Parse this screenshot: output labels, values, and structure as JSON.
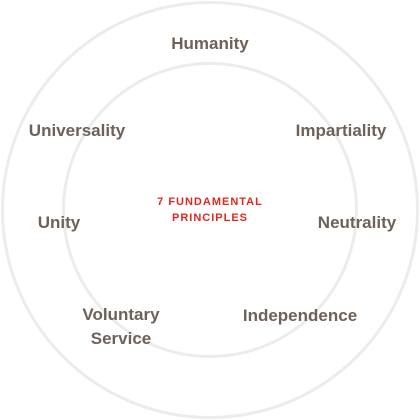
{
  "center": {
    "line1": "7 FUNDAMENTAL",
    "line2": "PRINCIPLES"
  },
  "principles": {
    "humanity": "Humanity",
    "impartiality": "Impartiality",
    "neutrality": "Neutrality",
    "independence": "Independence",
    "voluntary_service_line1": "Voluntary",
    "voluntary_service_line2": "Service",
    "unity": "Unity",
    "universality": "Universality"
  },
  "colors": {
    "principle_text": "#6f6158",
    "center_text": "#e0281e",
    "ring": "#ececec"
  }
}
